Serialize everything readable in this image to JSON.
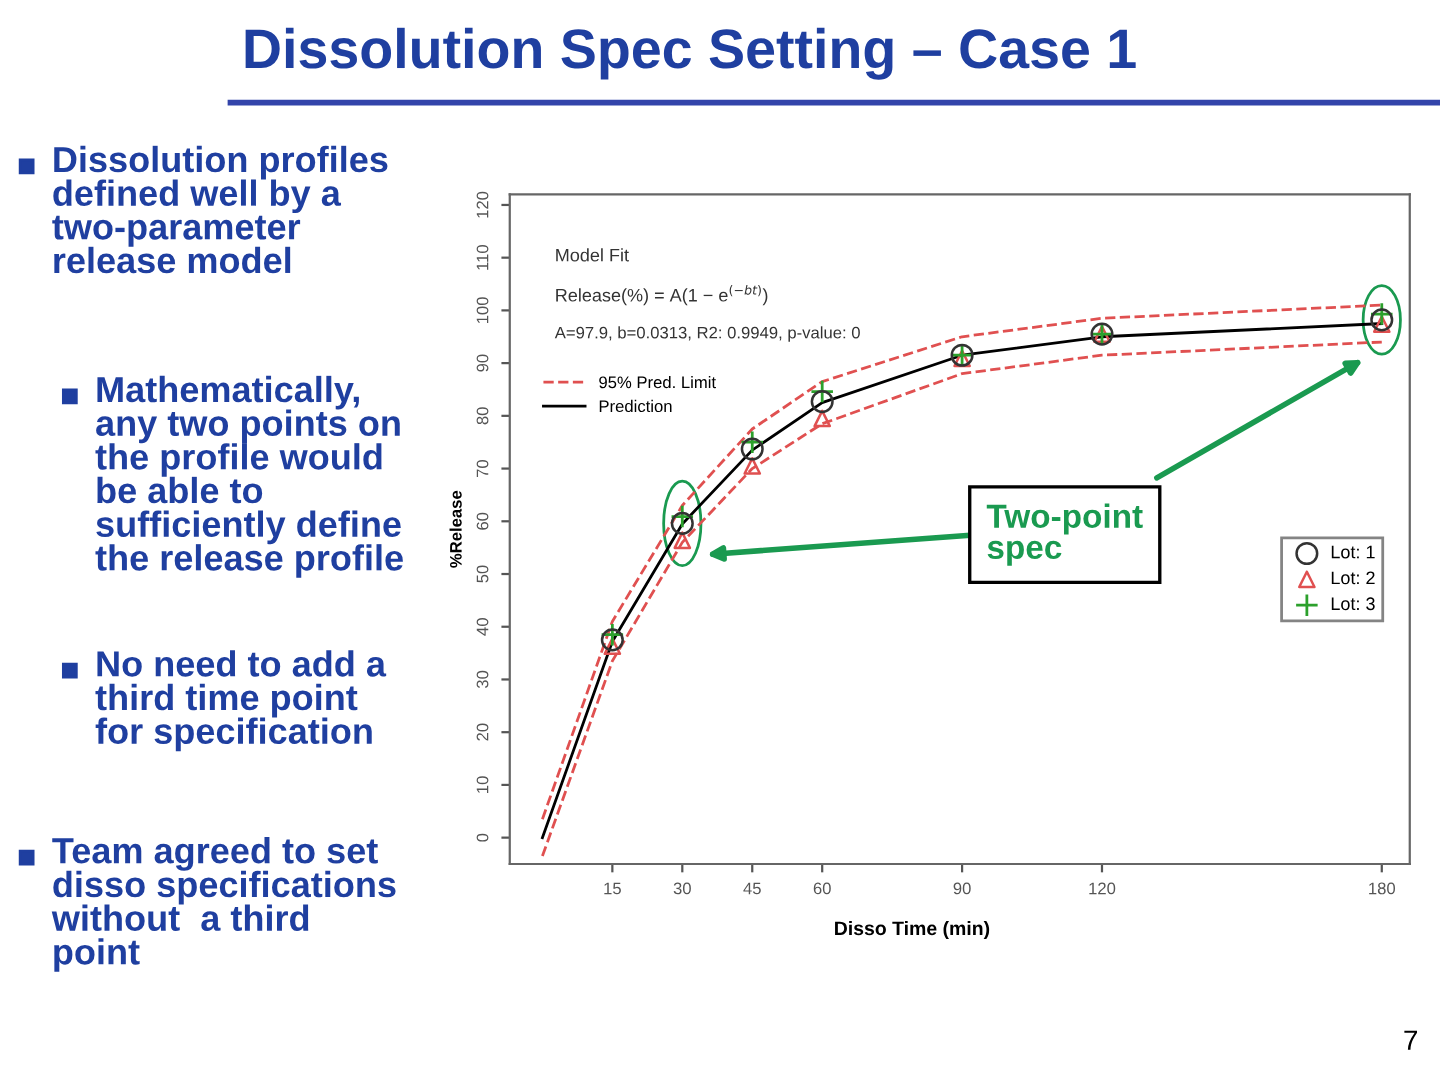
{
  "chart_data": {
    "type": "scatter",
    "title": "Dissolution Spec Setting – Case 1",
    "xlabel": "Disso Time (min)",
    "ylabel": "%Release",
    "xlim": [
      -7,
      186
    ],
    "xticks": [
      15,
      30,
      45,
      60,
      90,
      120,
      180
    ],
    "ylim": [
      -5,
      122
    ],
    "yticks": [
      0,
      10,
      20,
      30,
      40,
      50,
      60,
      70,
      80,
      90,
      100,
      110,
      120
    ],
    "grid": false,
    "legend": "center right",
    "annotations": [
      "Model Fit",
      "Release(%) = A(1 − e$^{(−bt)}$)",
      "A=97.9, b=0.0313, R2: 0.9949, p-value: 0",
      "Dissolution profiles\ndefined well by a\ntwo-parameter\nrelease model",
      "Mathematically,\nany two points on\nthe profile would\nbe able to\nsufficiently define\nthe release profile",
      "No need to add a\nthird time point\nfor specification",
      "Team agreed to set\ndisso specifications\nwithout  a third\npoint",
      "Two-point\nspec",
      "7"
    ],
    "series": [
      {
        "name": "95% Pred. Limit",
        "type": "line",
        "line_style": "dashed",
        "color": "#e05050",
        "x": [
          0,
          15,
          30,
          45,
          60,
          90,
          120,
          180
        ],
        "values": [
          3.5,
          41,
          63,
          77.5,
          86.5,
          95,
          98.5,
          101
        ]
      },
      {
        "type": "line",
        "line_style": "dashed",
        "color": "#e05050",
        "x": [
          0,
          15,
          30,
          45,
          60,
          90,
          120,
          180
        ],
        "values": [
          -3.5,
          33.5,
          56,
          70,
          78.5,
          88,
          91.5,
          94
        ]
      },
      {
        "name": "Prediction",
        "type": "line",
        "line_style": "solid",
        "color": "#000000",
        "x": [
          0,
          15,
          30,
          45,
          60,
          90,
          120,
          180
        ],
        "values": [
          0,
          37.2,
          59.5,
          73.5,
          82.5,
          91.5,
          95,
          97.5
        ]
      },
      {
        "name": "Lot: 1",
        "marker": "circle",
        "color": "#333333",
        "x": [
          15,
          30,
          45,
          60,
          90,
          120,
          180
        ],
        "values": [
          37.5,
          59.6,
          73.7,
          82.7,
          91.5,
          95.5,
          98.2
        ]
      },
      {
        "name": "Lot: 2",
        "marker": "triangle",
        "color": "#e05050",
        "x": [
          15,
          30,
          45,
          60,
          90,
          120,
          180
        ],
        "values": [
          36.3,
          56.4,
          70.5,
          79.5,
          90.9,
          95.5,
          97.4
        ]
      },
      {
        "name": "Lot: 3",
        "marker": "cross",
        "color": "#2ca02c",
        "x": [
          15,
          30,
          45,
          60,
          90,
          120,
          180
        ],
        "values": [
          38.5,
          60.9,
          75,
          84.6,
          91.5,
          95.5,
          99.3
        ]
      }
    ]
  }
}
